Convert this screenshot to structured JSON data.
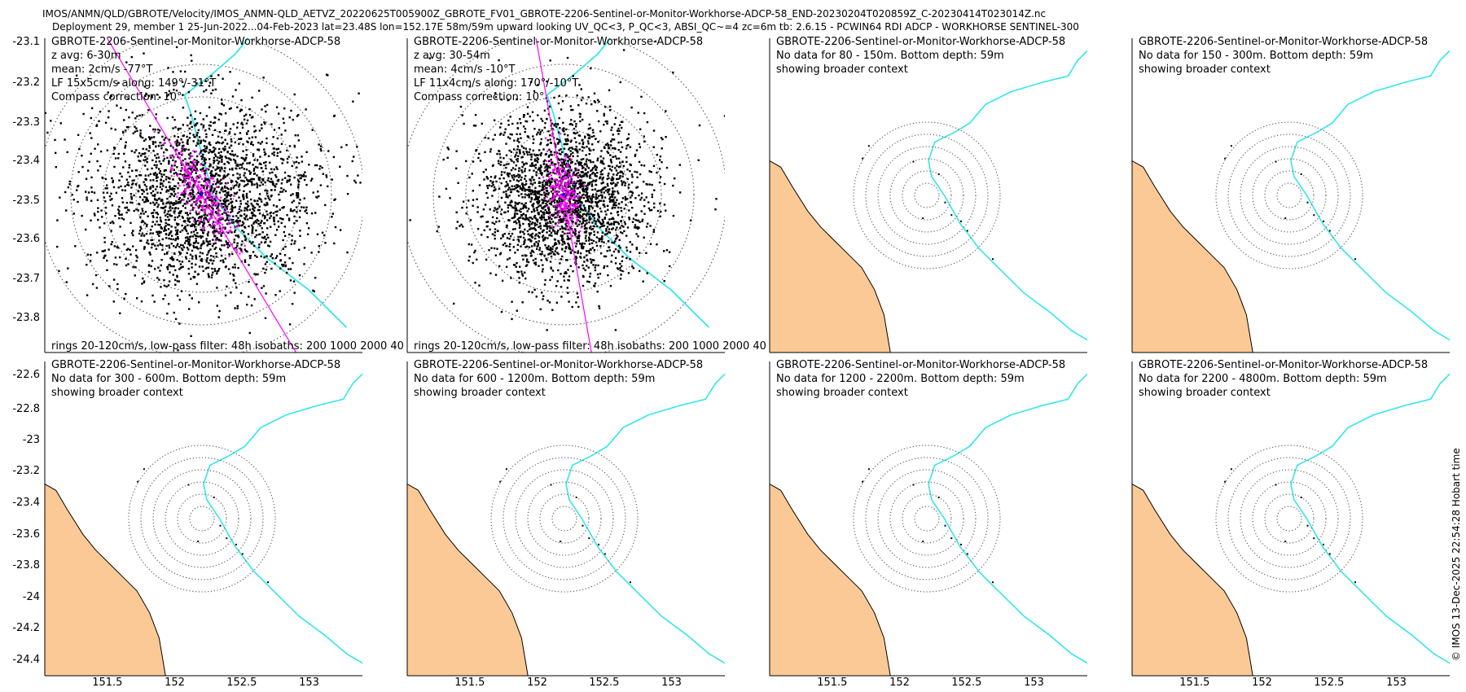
{
  "figure": {
    "title_line1": "IMOS/ANMN/QLD/GBROTE/Velocity/IMOS_ANMN-QLD_AETVZ_20220625T005900Z_GBROTE_FV01_GBROTE-2206-Sentinel-or-Monitor-Workhorse-ADCP-58_END-20230204T020859Z_C-20230414T023014Z.nc",
    "title_line2": "Deployment 29, member 1 25-Jun-2022...04-Feb-2023 lat=23.48S lon=152.17E 58m/59m upward looking UV_QC<3, P_QC<3, ABSI_QC~=4 zc=6m tb: 2.6.15 - PCWIN64 RDI ADCP - WORKHORSE SENTINEL-300",
    "side_label": "© IMOS 13-Dec-2025 22:54:28 Hobart time"
  },
  "colors": {
    "land": "#fbc995",
    "isobath": "#33e6ea",
    "low_pass": "#ff00ff",
    "scatter": "#000000",
    "rings": "#555555"
  },
  "chart_data": {
    "type": "scatter",
    "station": {
      "lat": -23.48,
      "lon": 152.17,
      "bottom_depth_m": 59
    },
    "footer_text": "rings 20-120cm/s, low-pass filter: 48h isobaths: 200 1000 2000 40",
    "top_row_yticks": [
      "-23.1",
      "-23.2",
      "-23.3",
      "-23.4",
      "-23.5",
      "-23.6",
      "-23.7",
      "-23.8"
    ],
    "bottom_row_yticks": [
      "-22.6",
      "-22.8",
      "-23",
      "-23.2",
      "-23.4",
      "-23.6",
      "-23.8",
      "-24",
      "-24.2",
      "-24.4"
    ],
    "xticks": [
      "151.5",
      "152",
      "152.5",
      "153"
    ],
    "panels": [
      {
        "title": "GBROTE-2206-Sentinel-or-Monitor-Workhorse-ADCP-58",
        "lines": [
          "z avg: 6-30m",
          "mean: 2cm/s -77°T",
          "LF 15x5cm/s along: 149°/-31°T",
          "Compass correction: 10°"
        ],
        "has_data": true,
        "mean_speed_cms": 2,
        "mean_dir_deg": -77,
        "lf_major_cms": 15,
        "lf_minor_cms": 5,
        "lf_along_deg": 149
      },
      {
        "title": "GBROTE-2206-Sentinel-or-Monitor-Workhorse-ADCP-58",
        "lines": [
          "z avg: 30-54m",
          "mean: 4cm/s -10°T",
          "LF 11x4cm/s along: 170°/-10°T",
          "Compass correction: 10°"
        ],
        "has_data": true,
        "mean_speed_cms": 4,
        "mean_dir_deg": -10,
        "lf_major_cms": 11,
        "lf_minor_cms": 4,
        "lf_along_deg": 170
      },
      {
        "title": "GBROTE-2206-Sentinel-or-Monitor-Workhorse-ADCP-58",
        "lines": [
          "No data for 80 - 150m. Bottom depth: 59m",
          "showing broader context"
        ],
        "has_data": false
      },
      {
        "title": "GBROTE-2206-Sentinel-or-Monitor-Workhorse-ADCP-58",
        "lines": [
          "No data for 150 - 300m. Bottom depth: 59m",
          "showing broader context"
        ],
        "has_data": false
      },
      {
        "title": "GBROTE-2206-Sentinel-or-Monitor-Workhorse-ADCP-58",
        "lines": [
          "No data for 300 - 600m. Bottom depth: 59m",
          "showing broader context"
        ],
        "has_data": false
      },
      {
        "title": "GBROTE-2206-Sentinel-or-Monitor-Workhorse-ADCP-58",
        "lines": [
          "No data for 600 - 1200m. Bottom depth: 59m",
          "showing broader context"
        ],
        "has_data": false
      },
      {
        "title": "GBROTE-2206-Sentinel-or-Monitor-Workhorse-ADCP-58",
        "lines": [
          "No data for 1200 - 2200m. Bottom depth: 59m",
          "showing broader context"
        ],
        "has_data": false
      },
      {
        "title": "GBROTE-2206-Sentinel-or-Monitor-Workhorse-ADCP-58",
        "lines": [
          "No data for 2200 - 4800m. Bottom depth: 59m",
          "showing broader context"
        ],
        "has_data": false
      }
    ]
  }
}
